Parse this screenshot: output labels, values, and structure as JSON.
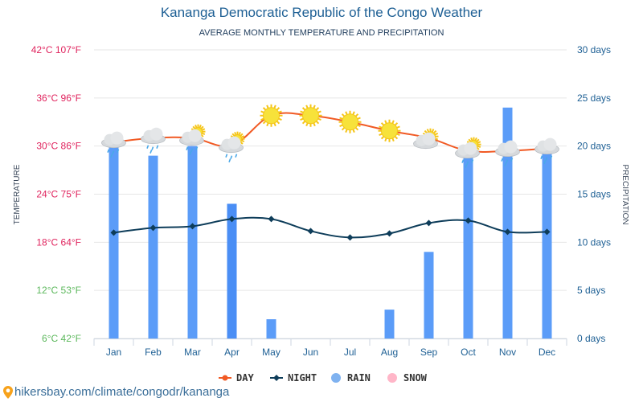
{
  "page": {
    "title": "Kananga Democratic Republic of the Congo Weather",
    "subtitle": "AVERAGE MONTHLY TEMPERATURE AND PRECIPITATION",
    "footer_link": "hikersbay.com/climate/congodr/kananga",
    "footer_icon": "location-pin-icon"
  },
  "chart_data": {
    "type": "line+bar",
    "title": "Kananga Democratic Republic of the Congo Weather",
    "subtitle": "AVERAGE MONTHLY TEMPERATURE AND PRECIPITATION",
    "categories": [
      "Jan",
      "Feb",
      "Mar",
      "Apr",
      "May",
      "Jun",
      "Jul",
      "Aug",
      "Sep",
      "Oct",
      "Nov",
      "Dec"
    ],
    "ylabel_left": "TEMPERATURE",
    "ylabel_right": "PRECIPITATION",
    "y_left": {
      "range": [
        6,
        42
      ],
      "ticks": [
        {
          "value": 42,
          "label": "42°C 107°F",
          "color": "#e0245e"
        },
        {
          "value": 36,
          "label": "36°C 96°F",
          "color": "#e0245e"
        },
        {
          "value": 30,
          "label": "30°C 86°F",
          "color": "#e0245e"
        },
        {
          "value": 24,
          "label": "24°C 75°F",
          "color": "#e0245e"
        },
        {
          "value": 18,
          "label": "18°C 64°F",
          "color": "#e0245e"
        },
        {
          "value": 12,
          "label": "12°C 53°F",
          "color": "#5cb85c"
        },
        {
          "value": 6,
          "label": "6°C 42°F",
          "color": "#5cb85c"
        }
      ]
    },
    "y_right": {
      "range": [
        0,
        30
      ],
      "ticks": [
        {
          "value": 30,
          "label": "30 days"
        },
        {
          "value": 25,
          "label": "25 days"
        },
        {
          "value": 20,
          "label": "20 days"
        },
        {
          "value": 15,
          "label": "15 days"
        },
        {
          "value": 10,
          "label": "10 days"
        },
        {
          "value": 5,
          "label": "5 days"
        },
        {
          "value": 0,
          "label": "0 days"
        }
      ]
    },
    "grid": true,
    "series": [
      {
        "name": "DAY",
        "type": "line",
        "axis": "left",
        "color": "#f15a24",
        "values": [
          30.5,
          31.0,
          31.0,
          30.1,
          33.8,
          33.8,
          33.0,
          31.9,
          31.0,
          29.4,
          29.4,
          29.7
        ]
      },
      {
        "name": "NIGHT",
        "type": "line",
        "axis": "left",
        "color": "#0e3d5a",
        "values": [
          19.2,
          19.8,
          20.0,
          20.9,
          20.9,
          19.4,
          18.6,
          19.1,
          20.4,
          20.7,
          19.3,
          19.3
        ]
      },
      {
        "name": "RAIN",
        "type": "bar",
        "axis": "right",
        "color": "#5b9cf8",
        "values": [
          20,
          19,
          20,
          14,
          2,
          0,
          0,
          3,
          9,
          20,
          24,
          20
        ]
      },
      {
        "name": "SNOW",
        "type": "bar",
        "axis": "right",
        "color": "#ffb6c8",
        "values": [
          0,
          0,
          0,
          0,
          0,
          0,
          0,
          0,
          0,
          0,
          0,
          0
        ]
      }
    ],
    "weather_icons": [
      "rain-cloud",
      "rain-cloud",
      "partly-cloudy-rain",
      "partly-cloudy-rain",
      "sun",
      "sun",
      "sun",
      "sun",
      "partly-cloudy",
      "partly-cloudy-rain",
      "rain-cloud",
      "rain-cloud"
    ],
    "legend": {
      "position": "bottom",
      "items": [
        {
          "label": "DAY",
          "color": "#f15a24",
          "marker": "line-dot"
        },
        {
          "label": "NIGHT",
          "color": "#0e3d5a",
          "marker": "line-diamond"
        },
        {
          "label": "RAIN",
          "color": "#7fb2f0",
          "marker": "circle"
        },
        {
          "label": "SNOW",
          "color": "#ffb6c8",
          "marker": "circle"
        }
      ]
    }
  }
}
